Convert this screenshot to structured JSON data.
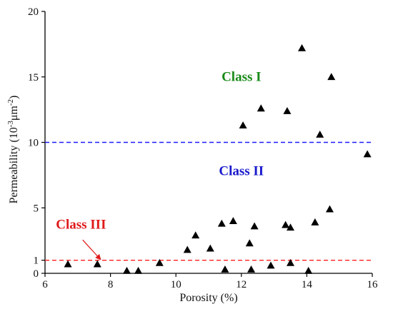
{
  "chart_data": {
    "type": "scatter",
    "xlabel": "Porosity (%)",
    "ylabel": {
      "base": "Permeability (10",
      "exp1": "-3",
      "mid": "μm",
      "exp2": "-2",
      "end": ")"
    },
    "xlim": [
      6,
      16
    ],
    "ylim": [
      0,
      20
    ],
    "x_ticks": [
      6,
      8,
      10,
      12,
      14,
      16
    ],
    "y_ticks": [
      0,
      1,
      5,
      10,
      15,
      20
    ],
    "grid": false,
    "marker": "triangle",
    "marker_color": "#000000",
    "points": [
      {
        "x": 6.7,
        "y": 0.7
      },
      {
        "x": 7.6,
        "y": 0.7
      },
      {
        "x": 8.5,
        "y": 0.2
      },
      {
        "x": 8.85,
        "y": 0.2
      },
      {
        "x": 9.5,
        "y": 0.8
      },
      {
        "x": 10.35,
        "y": 1.8
      },
      {
        "x": 10.6,
        "y": 2.9
      },
      {
        "x": 11.05,
        "y": 1.9
      },
      {
        "x": 11.4,
        "y": 3.8
      },
      {
        "x": 11.5,
        "y": 0.3
      },
      {
        "x": 11.75,
        "y": 4.0
      },
      {
        "x": 12.05,
        "y": 11.3
      },
      {
        "x": 12.25,
        "y": 2.3
      },
      {
        "x": 12.3,
        "y": 0.3
      },
      {
        "x": 12.4,
        "y": 3.6
      },
      {
        "x": 12.6,
        "y": 12.6
      },
      {
        "x": 12.9,
        "y": 0.6
      },
      {
        "x": 13.35,
        "y": 3.7
      },
      {
        "x": 13.4,
        "y": 12.4
      },
      {
        "x": 13.5,
        "y": 3.5
      },
      {
        "x": 13.5,
        "y": 0.8
      },
      {
        "x": 13.85,
        "y": 17.2
      },
      {
        "x": 14.05,
        "y": 0.2
      },
      {
        "x": 14.25,
        "y": 3.9
      },
      {
        "x": 14.4,
        "y": 10.6
      },
      {
        "x": 14.7,
        "y": 4.9
      },
      {
        "x": 14.75,
        "y": 15.0
      },
      {
        "x": 15.85,
        "y": 9.1
      }
    ],
    "thresholds": [
      {
        "y": 10,
        "color": "#1a1aff"
      },
      {
        "y": 1,
        "color": "#ff2020"
      }
    ],
    "annotations": [
      {
        "text": "Class I",
        "x": 12.0,
        "y": 14.7,
        "color": "#1a8a1a"
      },
      {
        "text": "Class II",
        "x": 12.0,
        "y": 7.5,
        "color": "#1a1acc"
      },
      {
        "text": "Class III",
        "x": 7.1,
        "y": 3.4,
        "color": "#e01a1a"
      }
    ],
    "arrow": {
      "from": {
        "x": 7.15,
        "y": 2.55
      },
      "to": {
        "x": 7.7,
        "y": 1.05
      },
      "color": "#e01a1a"
    }
  }
}
